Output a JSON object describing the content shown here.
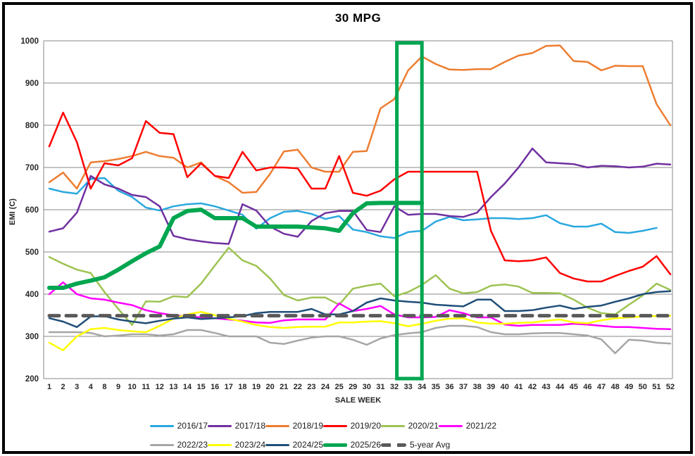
{
  "window_title": "30 MPG",
  "chart_data": {
    "type": "line",
    "title": "30 MPG",
    "xlabel": "SALE WEEK",
    "ylabel": "EMI (C)",
    "ylim": [
      200,
      1000
    ],
    "yticks": [
      200,
      300,
      400,
      500,
      600,
      700,
      800,
      900,
      1000
    ],
    "grid": "horizontal-only",
    "legend_position": "bottom-left, two rows",
    "highlight_box": {
      "weeks": [
        "33",
        "34"
      ],
      "color": "#00A650",
      "y_from": 200,
      "y_to": 995
    },
    "categories": [
      "1",
      "2",
      "3",
      "4",
      "8",
      "9",
      "10",
      "11",
      "12",
      "13",
      "14",
      "15",
      "16",
      "17",
      "18",
      "19",
      "20",
      "21",
      "22",
      "23",
      "24",
      "25",
      "29",
      "30",
      "31",
      "32",
      "33",
      "34",
      "35",
      "36",
      "37",
      "38",
      "39",
      "40",
      "41",
      "42",
      "43",
      "44",
      "45",
      "46",
      "47",
      "48",
      "49",
      "50",
      "51",
      "52"
    ],
    "series": [
      {
        "name": "2016/17",
        "color": "#29A8DF",
        "width": 2.5,
        "values": [
          650,
          642,
          638,
          673,
          675,
          645,
          630,
          605,
          598,
          608,
          613,
          615,
          608,
          598,
          588,
          555,
          580,
          595,
          597,
          590,
          578,
          585,
          553,
          547,
          537,
          533,
          547,
          550,
          572,
          583,
          575,
          577,
          580,
          580,
          578,
          580,
          587,
          568,
          560,
          560,
          567,
          547,
          545,
          550,
          557,
          null
        ]
      },
      {
        "name": "2017/18",
        "color": "#7030A0",
        "width": 2.5,
        "values": [
          548,
          556,
          593,
          680,
          660,
          650,
          635,
          630,
          608,
          538,
          530,
          525,
          521,
          519,
          613,
          598,
          560,
          543,
          536,
          573,
          592,
          597,
          597,
          552,
          547,
          608,
          588,
          590,
          590,
          585,
          583,
          593,
          630,
          662,
          700,
          745,
          712,
          710,
          708,
          700,
          704,
          703,
          700,
          702,
          709,
          707
        ]
      },
      {
        "name": "2018/19",
        "color": "#ED7D31",
        "width": 2.5,
        "values": [
          665,
          688,
          650,
          712,
          715,
          720,
          727,
          737,
          727,
          723,
          700,
          712,
          680,
          665,
          640,
          642,
          685,
          738,
          742,
          700,
          690,
          690,
          737,
          739,
          840,
          862,
          930,
          963,
          945,
          932,
          931,
          933,
          933,
          950,
          965,
          971,
          988,
          989,
          952,
          950,
          930,
          941,
          940,
          940,
          850,
          800
        ]
      },
      {
        "name": "2019/20",
        "color": "#FF0000",
        "width": 2.5,
        "values": [
          750,
          830,
          760,
          650,
          710,
          705,
          722,
          810,
          782,
          779,
          677,
          710,
          680,
          675,
          737,
          693,
          700,
          700,
          698,
          650,
          650,
          727,
          640,
          633,
          645,
          672,
          690,
          690,
          690,
          690,
          690,
          690,
          550,
          480,
          478,
          480,
          487,
          450,
          437,
          430,
          430,
          443,
          455,
          465,
          490,
          447
        ]
      },
      {
        "name": "2020/21",
        "color": "#9DC352",
        "width": 2.5,
        "values": [
          488,
          472,
          458,
          450,
          405,
          365,
          327,
          383,
          382,
          395,
          393,
          425,
          468,
          510,
          480,
          467,
          437,
          398,
          385,
          392,
          392,
          375,
          413,
          420,
          425,
          395,
          405,
          422,
          445,
          413,
          402,
          405,
          420,
          423,
          418,
          403,
          403,
          402,
          387,
          368,
          355,
          352,
          375,
          397,
          425,
          410
        ]
      },
      {
        "name": "2021/22",
        "color": "#FF00FF",
        "width": 2.5,
        "values": [
          400,
          428,
          400,
          390,
          387,
          380,
          374,
          362,
          355,
          350,
          347,
          345,
          343,
          340,
          337,
          333,
          332,
          338,
          340,
          340,
          340,
          378,
          360,
          365,
          372,
          352,
          345,
          345,
          346,
          362,
          355,
          345,
          345,
          328,
          325,
          327,
          327,
          327,
          330,
          328,
          325,
          322,
          322,
          320,
          318,
          317
        ]
      },
      {
        "name": "2022/23",
        "color": "#A6A6A6",
        "width": 2.5,
        "values": [
          310,
          310,
          310,
          308,
          300,
          302,
          305,
          305,
          302,
          305,
          315,
          315,
          308,
          300,
          300,
          300,
          285,
          282,
          290,
          297,
          300,
          300,
          292,
          280,
          295,
          303,
          307,
          310,
          320,
          325,
          325,
          322,
          310,
          305,
          305,
          307,
          308,
          308,
          305,
          302,
          293,
          260,
          292,
          290,
          285,
          283
        ]
      },
      {
        "name": "2023/24",
        "color": "#FFFF00",
        "width": 2.5,
        "values": [
          285,
          267,
          300,
          317,
          320,
          315,
          312,
          310,
          325,
          342,
          352,
          358,
          350,
          342,
          335,
          327,
          322,
          320,
          322,
          323,
          323,
          333,
          333,
          335,
          336,
          331,
          324,
          330,
          337,
          342,
          343,
          333,
          330,
          330,
          332,
          333,
          337,
          340,
          333,
          331,
          338,
          343,
          345,
          347,
          348,
          349
        ]
      },
      {
        "name": "2024/25",
        "color": "#1F4E79",
        "width": 2.5,
        "values": [
          343,
          335,
          322,
          347,
          348,
          340,
          335,
          331,
          337,
          342,
          345,
          341,
          343,
          345,
          348,
          355,
          358,
          358,
          358,
          365,
          352,
          352,
          360,
          380,
          390,
          385,
          382,
          380,
          375,
          373,
          371,
          387,
          387,
          360,
          360,
          362,
          368,
          373,
          365,
          370,
          373,
          382,
          390,
          400,
          405,
          407
        ]
      },
      {
        "name": "2025/26",
        "color": "#00A650",
        "width": 6,
        "values": [
          415,
          415,
          425,
          432,
          440,
          458,
          478,
          497,
          513,
          580,
          597,
          600,
          580,
          580,
          580,
          560,
          560,
          560,
          560,
          558,
          556,
          550,
          592,
          615,
          616,
          616,
          616,
          616,
          null,
          null,
          null,
          null,
          null,
          null,
          null,
          null,
          null,
          null,
          null,
          null,
          null,
          null,
          null,
          null,
          null,
          null
        ]
      },
      {
        "name": "5-year Avg",
        "color": "#595959",
        "width": 5,
        "dash": "14 10",
        "values": [
          349,
          349,
          349,
          349,
          349,
          349,
          349,
          349,
          349,
          349,
          349,
          349,
          349,
          349,
          349,
          349,
          349,
          349,
          349,
          349,
          349,
          349,
          349,
          349,
          349,
          349,
          349,
          349,
          349,
          349,
          349,
          349,
          349,
          349,
          349,
          349,
          349,
          349,
          349,
          349,
          349,
          349,
          349,
          349,
          349,
          349
        ]
      }
    ]
  }
}
